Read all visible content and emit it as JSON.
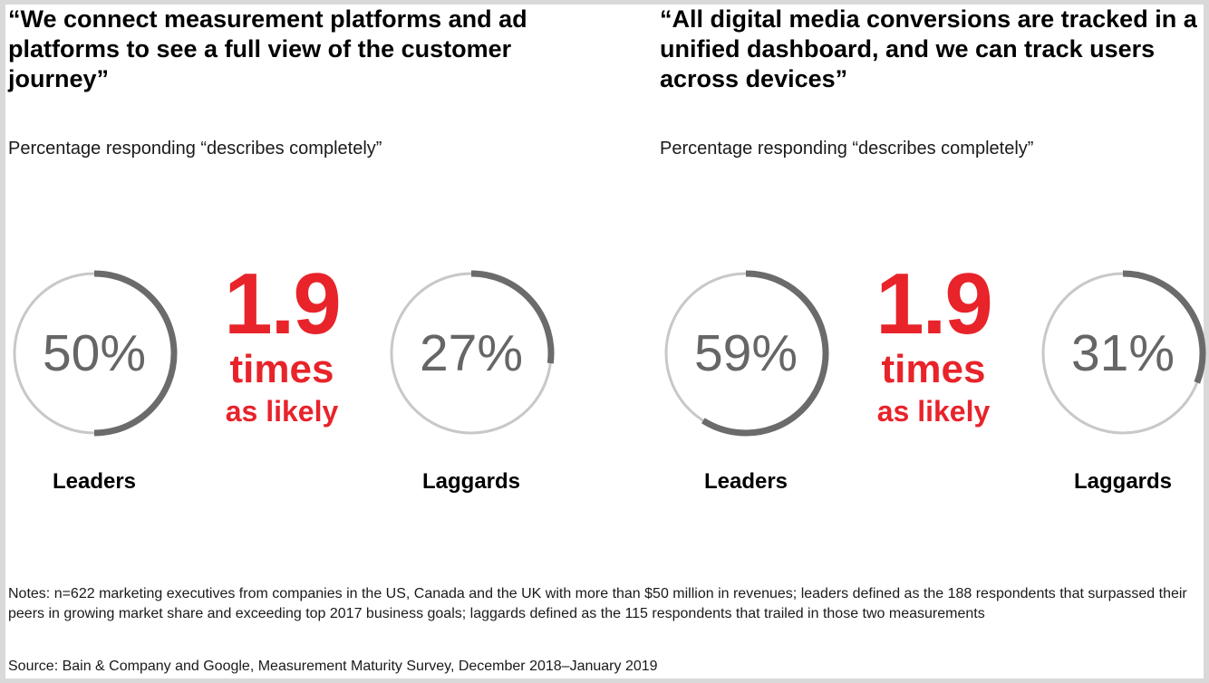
{
  "chart_data": [
    {
      "type": "ring-comparison",
      "quote": "“We connect measurement platforms and ad platforms to see a full view of the customer journey”",
      "subtitle": "Percentage responding “describes completely”",
      "multiplier": {
        "value": "1.9",
        "unit": "times",
        "suffix": "as likely"
      },
      "groups": [
        {
          "label": "Leaders",
          "value": 50,
          "display": "50%"
        },
        {
          "label": "Laggards",
          "value": 27,
          "display": "27%"
        }
      ]
    },
    {
      "type": "ring-comparison",
      "quote": "“All digital media conversions are tracked in a unified dashboard, and we can track users across devices”",
      "subtitle": "Percentage responding “describes completely”",
      "multiplier": {
        "value": "1.9",
        "unit": "times",
        "suffix": "as likely"
      },
      "groups": [
        {
          "label": "Leaders",
          "value": 59,
          "display": "59%"
        },
        {
          "label": "Laggards",
          "value": 31,
          "display": "31%"
        }
      ]
    }
  ],
  "footer": {
    "notes": "Notes: n=622 marketing executives from companies in the US, Canada and the UK with more than $50 million in revenues; leaders defined as the 188 respondents that surpassed their peers in growing market share and exceeding top 2017 business goals; laggards defined as the 115 respondents that trailed in those two measurements",
    "source": "Source: Bain & Company and Google, Measurement Maturity Survey, December 2018–January 2019"
  },
  "colors": {
    "accent": "#e8232a",
    "ring_track": "#c8c8c8",
    "ring_fill": "#6b6b6b",
    "percent_text": "#666666"
  }
}
